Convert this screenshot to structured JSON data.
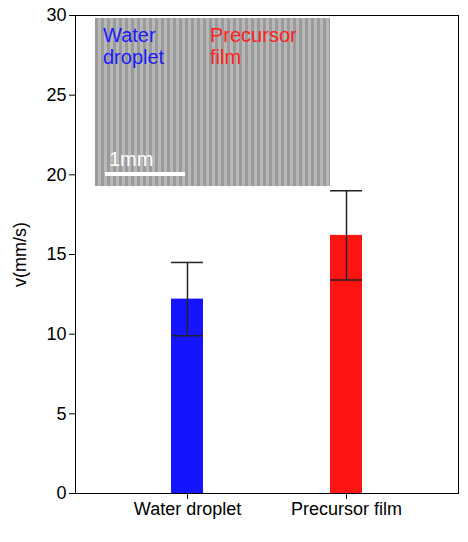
{
  "chart_data": {
    "type": "bar",
    "categories": [
      "Water droplet",
      "Precursor film"
    ],
    "values": [
      12.2,
      16.2
    ],
    "errors": [
      2.3,
      2.8
    ],
    "colors": [
      "#1414ff",
      "#ff1414"
    ],
    "ylabel": "v(mm/s)",
    "ylim": [
      0,
      30
    ],
    "yticks": [
      0,
      5,
      10,
      15,
      20,
      25,
      30
    ],
    "annotations": [
      {
        "text": "Water droplet",
        "color": "#1a1aff"
      },
      {
        "text": "Precursor film",
        "color": "#ff2020"
      },
      {
        "text": "1mm",
        "color": "#ffffff"
      }
    ]
  }
}
